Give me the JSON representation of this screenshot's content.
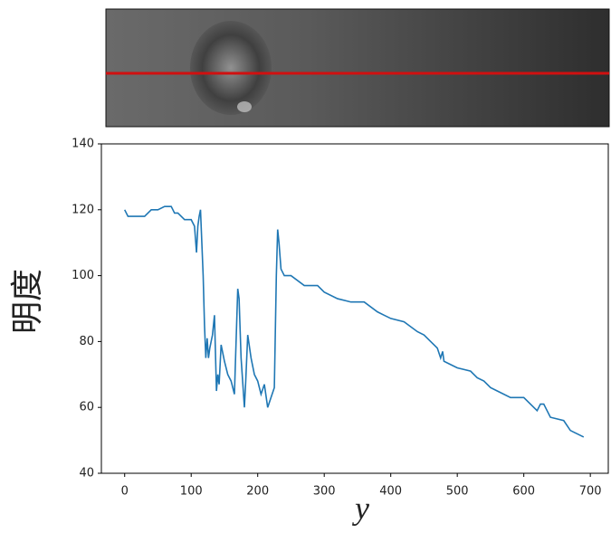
{
  "chart_data": {
    "type": "line",
    "xlabel": "y",
    "ylabel": "明度",
    "x": [
      0,
      5,
      10,
      20,
      30,
      40,
      50,
      60,
      70,
      75,
      80,
      90,
      95,
      100,
      105,
      108,
      110,
      112,
      114,
      116,
      118,
      120,
      122,
      124,
      126,
      128,
      130,
      132,
      135,
      138,
      140,
      142,
      145,
      150,
      155,
      160,
      165,
      170,
      172,
      175,
      180,
      182,
      185,
      190,
      195,
      200,
      205,
      210,
      215,
      220,
      225,
      228,
      230,
      232,
      235,
      240,
      250,
      270,
      290,
      300,
      320,
      340,
      360,
      380,
      390,
      400,
      420,
      440,
      450,
      460,
      470,
      475,
      478,
      480,
      490,
      500,
      520,
      530,
      540,
      550,
      560,
      580,
      600,
      610,
      620,
      625,
      630,
      640,
      660,
      670,
      680,
      690
    ],
    "series": [
      {
        "color": "#1f77b4",
        "values": [
          120,
          118,
          118,
          118,
          118,
          120,
          120,
          121,
          121,
          119,
          119,
          117,
          117,
          117,
          115,
          107,
          115,
          118,
          120,
          110,
          100,
          85,
          75,
          81,
          75,
          78,
          80,
          82,
          88,
          65,
          70,
          67,
          79,
          74,
          70,
          68,
          64,
          96,
          93,
          75,
          60,
          68,
          82,
          75,
          70,
          68,
          64,
          67,
          60,
          63,
          66,
          100,
          114,
          110,
          102,
          100,
          100,
          97,
          97,
          95,
          93,
          92,
          92,
          89,
          88,
          87,
          86,
          83,
          82,
          80,
          78,
          75,
          77,
          74,
          73,
          72,
          71,
          69,
          68,
          66,
          65,
          63,
          63,
          61,
          59,
          61,
          61,
          57,
          56,
          53,
          52,
          51
        ]
      }
    ],
    "xlim": [
      -35,
      727
    ],
    "ylim": [
      40,
      140
    ],
    "xticks": [
      0,
      100,
      200,
      300,
      400,
      500,
      600,
      700
    ],
    "yticks": [
      40,
      60,
      80,
      100,
      120,
      140
    ]
  }
}
